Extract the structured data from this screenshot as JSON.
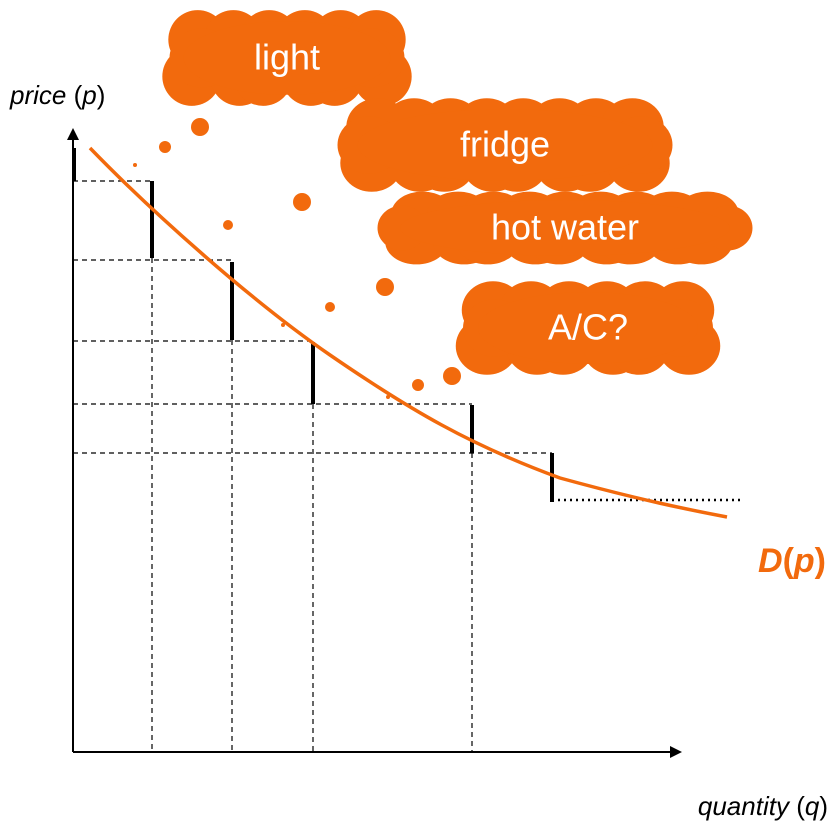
{
  "y_axis_label": [
    "price",
    " (",
    "p",
    ")"
  ],
  "x_axis_label": [
    "quantity",
    " (",
    "q",
    ")"
  ],
  "curve_label": [
    "D",
    "(",
    "p",
    ")"
  ],
  "clouds": [
    "light",
    "fridge",
    "hot water",
    "A/C?"
  ]
}
